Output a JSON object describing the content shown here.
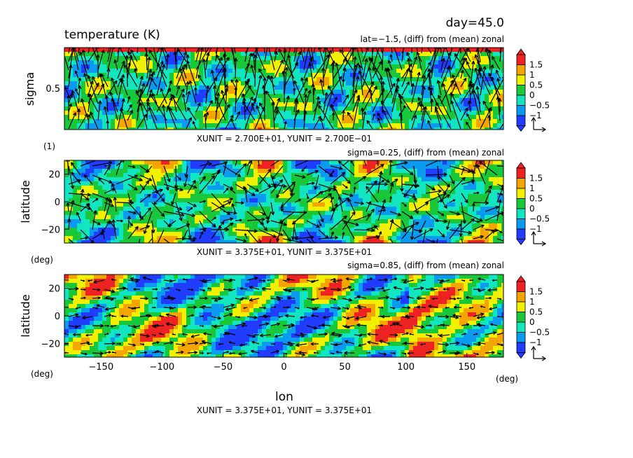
{
  "header": {
    "day": "day=45.0",
    "title": "temperature (K)"
  },
  "footer": {
    "xlabel": "lon",
    "unit_note": "XUNIT = 3.375E+01, YUNIT = 3.375E+01"
  },
  "colorbar": {
    "levels": [
      "1.5",
      "1",
      "0.5",
      "0",
      "−0.5",
      "−1"
    ],
    "colors": [
      "#1f3cff",
      "#0a9bf0",
      "#12e6c0",
      "#18c83a",
      "#f0f000",
      "#f5a500",
      "#ee2222"
    ]
  },
  "chart_data": [
    {
      "type": "heatmap",
      "title": "temperature (K)",
      "subtitle": "lat=−1.5, (diff) from (mean) zonal",
      "xlabel": "",
      "ylabel": "sigma",
      "yunit": "(1)",
      "ytick_labels": [
        "0.5"
      ],
      "ylim": [
        1.0,
        0.0
      ],
      "xlim": [
        -180,
        180
      ],
      "unit_note": "XUNIT = 2.700E+01, YUNIT = 2.700E−01",
      "legend": "right",
      "vectors": true
    },
    {
      "type": "heatmap",
      "subtitle": "sigma=0.25, (diff) from (mean) zonal",
      "xlabel": "",
      "ylabel": "latitude",
      "yunit": "(deg)",
      "ytick_labels": [
        "20",
        "0",
        "−20"
      ],
      "ylim": [
        -30,
        30
      ],
      "xlim": [
        -180,
        180
      ],
      "unit_note": "XUNIT = 3.375E+01, YUNIT = 3.375E+01",
      "legend": "right",
      "vectors": true
    },
    {
      "type": "heatmap",
      "subtitle": "sigma=0.85, (diff) from (mean) zonal",
      "xlabel": "lon",
      "xunit": "(deg)",
      "ylabel": "latitude",
      "yunit": "(deg)",
      "ytick_labels": [
        "20",
        "0",
        "−20"
      ],
      "xtick_labels": [
        "−150",
        "−100",
        "−50",
        "0",
        "50",
        "100",
        "150"
      ],
      "xticks": [
        -150,
        -100,
        -50,
        0,
        50,
        100,
        150
      ],
      "ylim": [
        -30,
        30
      ],
      "xlim": [
        -180,
        180
      ],
      "legend": "right",
      "vectors": true
    }
  ]
}
